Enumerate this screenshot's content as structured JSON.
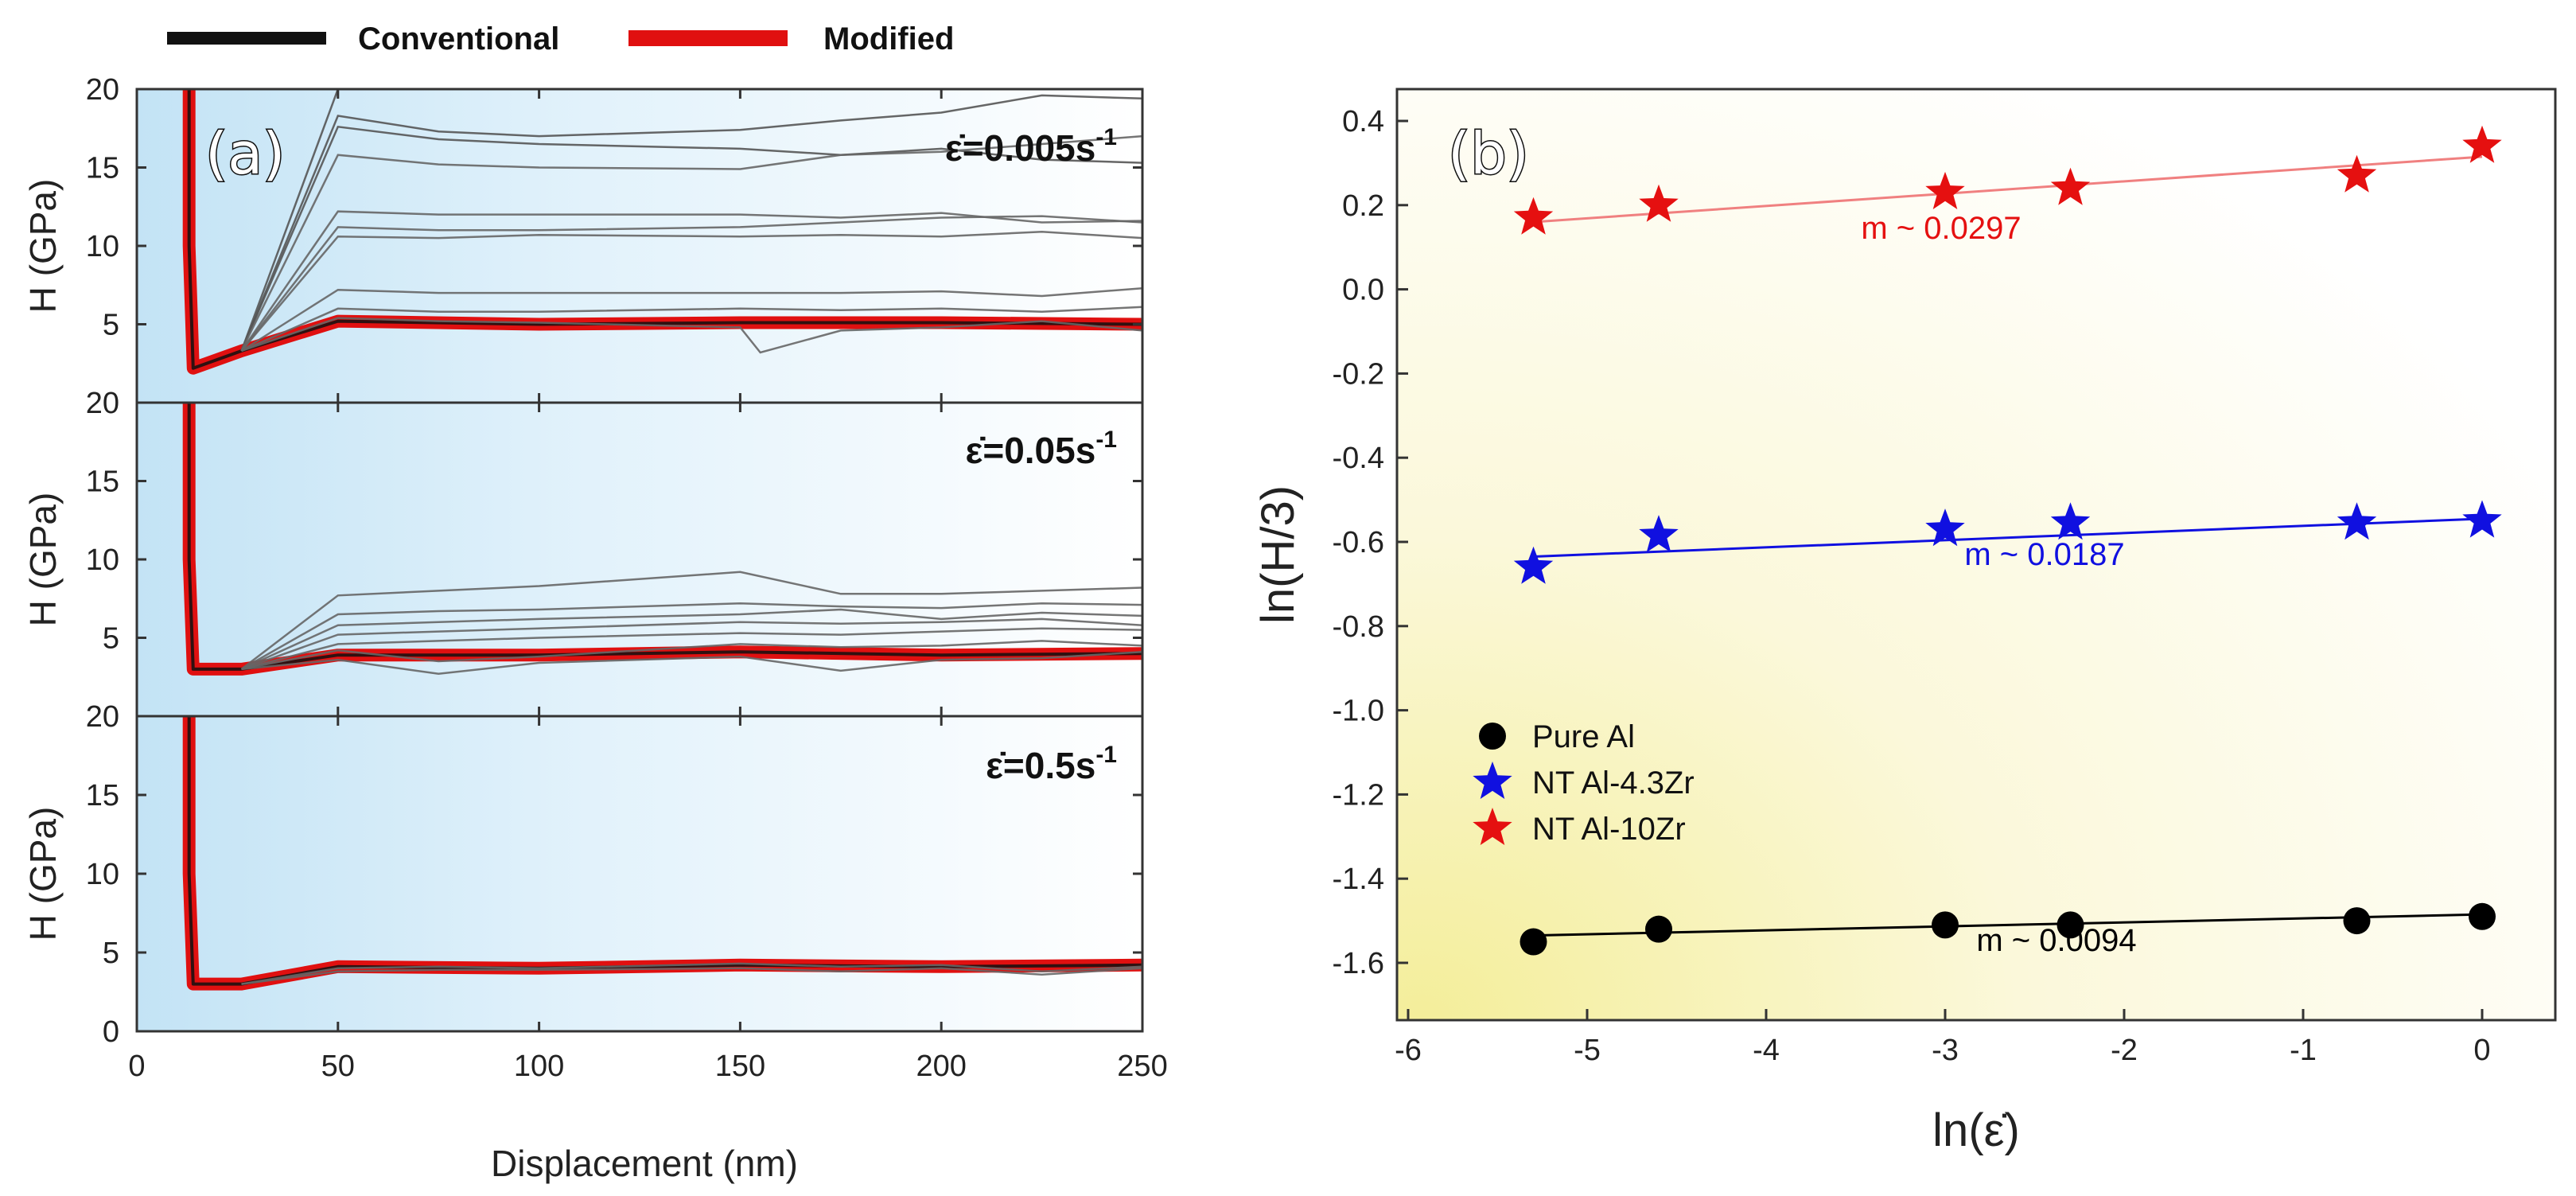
{
  "colors": {
    "conventional": "#111111",
    "modified": "#e01010",
    "pure_al": "#000000",
    "nt_43": "#1010e0",
    "nt_10": "#e51010",
    "grey_curve": "#666666"
  },
  "legend_a": {
    "conventional": "Conventional",
    "modified": "Modified"
  },
  "chart_data": [
    {
      "id": "a",
      "panel_label": "(a)",
      "type": "line",
      "xlabel": "Displacement (nm)",
      "ylabel": "H (GPa)",
      "xlim": [
        0,
        250
      ],
      "ylim": [
        0,
        20
      ],
      "xticks": [
        "0",
        "50",
        "100",
        "150",
        "200",
        "250"
      ],
      "yticks": [
        "0",
        "5",
        "10",
        "15",
        "20"
      ],
      "subplots": [
        {
          "rate_prefix": "ε̇=",
          "rate_value": "0.005s",
          "rate_exp": "-1",
          "modified": {
            "x": [
              13,
              13,
              14,
              26,
              50,
              100,
              150,
              200,
              250
            ],
            "y": [
              20,
              10,
              2.2,
              3.3,
              5.2,
              5.0,
              5.1,
              5.1,
              5.0
            ]
          },
          "conventional_curves": [
            {
              "x": [
                26,
                50,
                75,
                100,
                150,
                175,
                200,
                225,
                250
              ],
              "y": [
                3.3,
                20,
                20,
                20,
                20,
                20,
                20,
                20,
                20
              ]
            },
            {
              "x": [
                26,
                50,
                75,
                100,
                150,
                175,
                200,
                225,
                250
              ],
              "y": [
                3.3,
                18.3,
                17.3,
                17.0,
                17.4,
                18.0,
                18.5,
                19.6,
                19.4
              ]
            },
            {
              "x": [
                26,
                50,
                75,
                100,
                150,
                175,
                200,
                225,
                250
              ],
              "y": [
                3.3,
                17.6,
                16.8,
                16.5,
                16.2,
                15.8,
                16.2,
                15.5,
                15.3
              ]
            },
            {
              "x": [
                26,
                50,
                75,
                100,
                150,
                175,
                200,
                225,
                250
              ],
              "y": [
                3.3,
                15.8,
                15.2,
                15.0,
                14.9,
                15.8,
                16.0,
                16.5,
                17.0
              ]
            },
            {
              "x": [
                26,
                50,
                75,
                100,
                150,
                175,
                200,
                225,
                250
              ],
              "y": [
                3.3,
                12.2,
                12.0,
                12.0,
                12.0,
                11.8,
                12.1,
                11.5,
                11.6
              ]
            },
            {
              "x": [
                26,
                50,
                75,
                100,
                150,
                175,
                200,
                225,
                250
              ],
              "y": [
                3.3,
                11.2,
                11.0,
                11.0,
                11.2,
                11.5,
                11.8,
                11.9,
                11.5
              ]
            },
            {
              "x": [
                26,
                50,
                75,
                100,
                150,
                175,
                200,
                225,
                250
              ],
              "y": [
                3.3,
                10.6,
                10.5,
                10.7,
                10.6,
                10.7,
                10.6,
                10.9,
                10.5
              ]
            },
            {
              "x": [
                26,
                50,
                75,
                100,
                150,
                175,
                200,
                225,
                250
              ],
              "y": [
                3.3,
                7.2,
                7.0,
                7.0,
                7.0,
                7.0,
                7.1,
                6.8,
                7.3
              ]
            },
            {
              "x": [
                26,
                50,
                75,
                100,
                150,
                175,
                200,
                225,
                250
              ],
              "y": [
                3.3,
                6.0,
                5.8,
                5.8,
                6.0,
                5.9,
                6.0,
                5.8,
                6.1
              ]
            },
            {
              "x": [
                26,
                50,
                75,
                100,
                150,
                155,
                175,
                200,
                225,
                250
              ],
              "y": [
                3.3,
                5.4,
                5.2,
                5.1,
                4.8,
                3.2,
                4.6,
                4.8,
                5.2,
                4.6
              ]
            }
          ]
        },
        {
          "rate_prefix": "ε̇=",
          "rate_value": "0.05s",
          "rate_exp": "-1",
          "modified": {
            "x": [
              13,
              13,
              14,
              26,
              50,
              100,
              150,
              200,
              250
            ],
            "y": [
              20,
              10,
              3.0,
              3.0,
              3.9,
              3.9,
              4.1,
              3.9,
              4.0
            ]
          },
          "conventional_curves": [
            {
              "x": [
                26,
                50,
                75,
                100,
                150,
                175,
                200,
                225,
                250
              ],
              "y": [
                3.0,
                7.7,
                8.0,
                8.3,
                9.2,
                7.8,
                7.8,
                8.0,
                8.2
              ]
            },
            {
              "x": [
                26,
                50,
                75,
                100,
                150,
                175,
                200,
                225,
                250
              ],
              "y": [
                3.0,
                6.5,
                6.7,
                6.8,
                7.2,
                7.0,
                6.9,
                7.2,
                7.1
              ]
            },
            {
              "x": [
                26,
                50,
                75,
                100,
                150,
                175,
                200,
                225,
                250
              ],
              "y": [
                3.0,
                5.8,
                6.0,
                6.2,
                6.5,
                6.8,
                6.2,
                6.6,
                6.4
              ]
            },
            {
              "x": [
                26,
                50,
                75,
                100,
                150,
                175,
                200,
                225,
                250
              ],
              "y": [
                3.0,
                5.2,
                5.4,
                5.6,
                6.0,
                5.9,
                6.0,
                6.2,
                5.8
              ]
            },
            {
              "x": [
                26,
                50,
                75,
                100,
                150,
                175,
                200,
                225,
                250
              ],
              "y": [
                3.0,
                4.6,
                4.8,
                5.0,
                5.3,
                5.2,
                5.4,
                5.6,
                5.5
              ]
            },
            {
              "x": [
                26,
                50,
                75,
                100,
                150,
                175,
                200,
                225,
                250
              ],
              "y": [
                3.0,
                4.2,
                3.5,
                3.8,
                4.6,
                4.4,
                4.5,
                4.8,
                4.5
              ]
            },
            {
              "x": [
                26,
                50,
                75,
                100,
                150,
                175,
                200,
                225,
                250
              ],
              "y": [
                3.0,
                3.6,
                2.7,
                3.4,
                3.8,
                2.9,
                3.6,
                3.7,
                4.1
              ]
            }
          ]
        },
        {
          "rate_prefix": "ε̇=",
          "rate_value": "0.5s",
          "rate_exp": "-1",
          "modified": {
            "x": [
              13,
              13,
              14,
              26,
              50,
              100,
              150,
              200,
              250
            ],
            "y": [
              20,
              10,
              3.0,
              3.0,
              4.1,
              4.0,
              4.2,
              4.1,
              4.2
            ]
          },
          "conventional_curves": [
            {
              "x": [
                26,
                50,
                75,
                100,
                150,
                175,
                200,
                225,
                250
              ],
              "y": [
                3.0,
                4.0,
                4.1,
                4.0,
                4.3,
                4.1,
                4.2,
                3.8,
                4.1
              ]
            },
            {
              "x": [
                26,
                50,
                75,
                100,
                150,
                175,
                200,
                225,
                250
              ],
              "y": [
                3.0,
                3.8,
                3.9,
                3.9,
                4.0,
                3.8,
                4.0,
                3.6,
                4.0
              ]
            }
          ]
        }
      ]
    },
    {
      "id": "b",
      "panel_label": "(b)",
      "type": "scatter",
      "xlabel": "ln(ε̇)",
      "ylabel": "ln(H/3)",
      "xlim": [
        -6,
        0.6
      ],
      "ylim": [
        -1.7,
        0.45
      ],
      "xticks": [
        -6,
        -5,
        -4,
        -3,
        -2,
        -1,
        0
      ],
      "yticks": [
        0.4,
        0.2,
        0.0,
        -0.2,
        -0.4,
        -0.6,
        -0.8,
        -1.0,
        -1.2,
        -1.4,
        -1.6
      ],
      "ytick_labels": [
        "0.4",
        "0.2",
        "0.0",
        "-0.2",
        "-0.4",
        "-0.6",
        "-0.8",
        "-1.0",
        "-1.2",
        "-1.4",
        "-1.6"
      ],
      "xtick_labels": [
        "-6",
        "-5",
        "-4",
        "-3",
        "-2",
        "-1",
        "0"
      ],
      "series": [
        {
          "name": "Pure Al",
          "marker": "circle",
          "x": [
            -5.3,
            -4.6,
            -3.0,
            -2.3,
            -0.7,
            0.0
          ],
          "y": [
            -1.55,
            -1.52,
            -1.51,
            -1.51,
            -1.5,
            -1.49
          ],
          "fit": [
            [
              -5.3,
              -1.535
            ],
            [
              0.0,
              -1.485
            ]
          ],
          "slope_label": "m ~ 0.0094"
        },
        {
          "name": "NT Al-4.3Zr",
          "marker": "star",
          "x": [
            -5.3,
            -4.6,
            -3.0,
            -2.3,
            -0.7,
            0.0
          ],
          "y": [
            -0.66,
            -0.585,
            -0.57,
            -0.555,
            -0.555,
            -0.55
          ],
          "fit": [
            [
              -5.3,
              -0.635
            ],
            [
              0.0,
              -0.545
            ]
          ],
          "slope_label": "m ~ 0.0187"
        },
        {
          "name": "NT Al-10Zr",
          "marker": "star",
          "x": [
            -5.3,
            -4.6,
            -3.0,
            -2.3,
            -0.7,
            0.0
          ],
          "y": [
            0.17,
            0.2,
            0.23,
            0.24,
            0.27,
            0.34
          ],
          "fit": [
            [
              -5.3,
              0.16
            ],
            [
              0.0,
              0.315
            ]
          ],
          "slope_label": "m ~ 0.0297"
        }
      ]
    }
  ]
}
